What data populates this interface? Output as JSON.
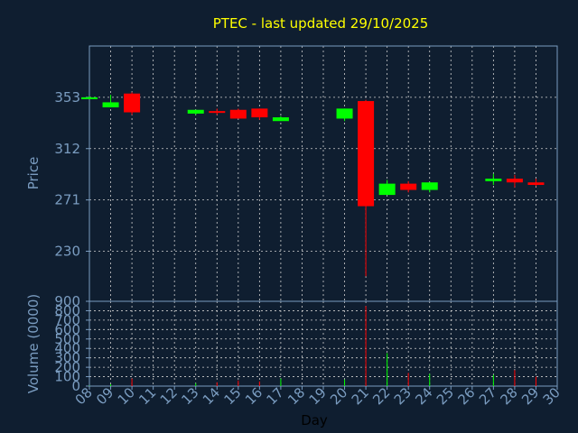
{
  "chart_data": {
    "type": "candlestick",
    "title": "PTEC - last updated 29/10/2025",
    "xlabel": "Day",
    "price_panel": {
      "ylabel": "Price",
      "ylim": [
        190,
        394
      ],
      "yticks": [
        230,
        271,
        312,
        353
      ]
    },
    "volume_panel": {
      "ylabel": "Volume (0000)",
      "ylim": [
        0,
        900
      ],
      "yticks": [
        0,
        100,
        200,
        300,
        400,
        500,
        600,
        700,
        800,
        900
      ]
    },
    "x_ticks": [
      "08",
      "09",
      "10",
      "11",
      "12",
      "13",
      "14",
      "15",
      "16",
      "17",
      "18",
      "19",
      "20",
      "21",
      "22",
      "23",
      "24",
      "25",
      "26",
      "27",
      "28",
      "29",
      "30"
    ],
    "candles": [
      {
        "day": 8,
        "open": 353,
        "high": 354,
        "low": 352,
        "close": 353,
        "volume": 5
      },
      {
        "day": 9,
        "open": 345,
        "high": 355,
        "low": 345,
        "close": 349,
        "volume": 20
      },
      {
        "day": 10,
        "open": 356,
        "high": 357,
        "low": 339,
        "close": 341,
        "volume": 80
      },
      {
        "day": 13,
        "open": 340,
        "high": 343,
        "low": 339,
        "close": 343,
        "volume": 30
      },
      {
        "day": 14,
        "open": 342,
        "high": 344,
        "low": 339,
        "close": 341,
        "volume": 40
      },
      {
        "day": 15,
        "open": 343,
        "high": 344,
        "low": 336,
        "close": 336,
        "volume": 60
      },
      {
        "day": 16,
        "open": 344,
        "high": 344,
        "low": 335,
        "close": 337,
        "volume": 50
      },
      {
        "day": 17,
        "open": 334,
        "high": 338,
        "low": 334,
        "close": 337,
        "volume": 80
      },
      {
        "day": 20,
        "open": 336,
        "high": 344,
        "low": 334,
        "close": 344,
        "volume": 70
      },
      {
        "day": 21,
        "open": 350,
        "high": 351,
        "low": 210,
        "close": 266,
        "volume": 850
      },
      {
        "day": 22,
        "open": 275,
        "high": 287,
        "low": 275,
        "close": 284,
        "volume": 350
      },
      {
        "day": 23,
        "open": 284,
        "high": 286,
        "low": 277,
        "close": 279,
        "volume": 140
      },
      {
        "day": 24,
        "open": 279,
        "high": 285,
        "low": 277,
        "close": 285,
        "volume": 130
      },
      {
        "day": 27,
        "open": 286,
        "high": 292,
        "low": 283,
        "close": 288,
        "volume": 120
      },
      {
        "day": 28,
        "open": 288,
        "high": 291,
        "low": 281,
        "close": 285,
        "volume": 170
      },
      {
        "day": 29,
        "open": 285,
        "high": 288,
        "low": 282,
        "close": 283,
        "volume": 100
      }
    ],
    "colors": {
      "background": "#0f1e30",
      "grid": "#d0d0d0",
      "axis_text": "#7a9cc0",
      "title": "#ffff00",
      "up": "#00ff00",
      "down": "#ff0000",
      "label": "#000000"
    },
    "grid": true
  }
}
